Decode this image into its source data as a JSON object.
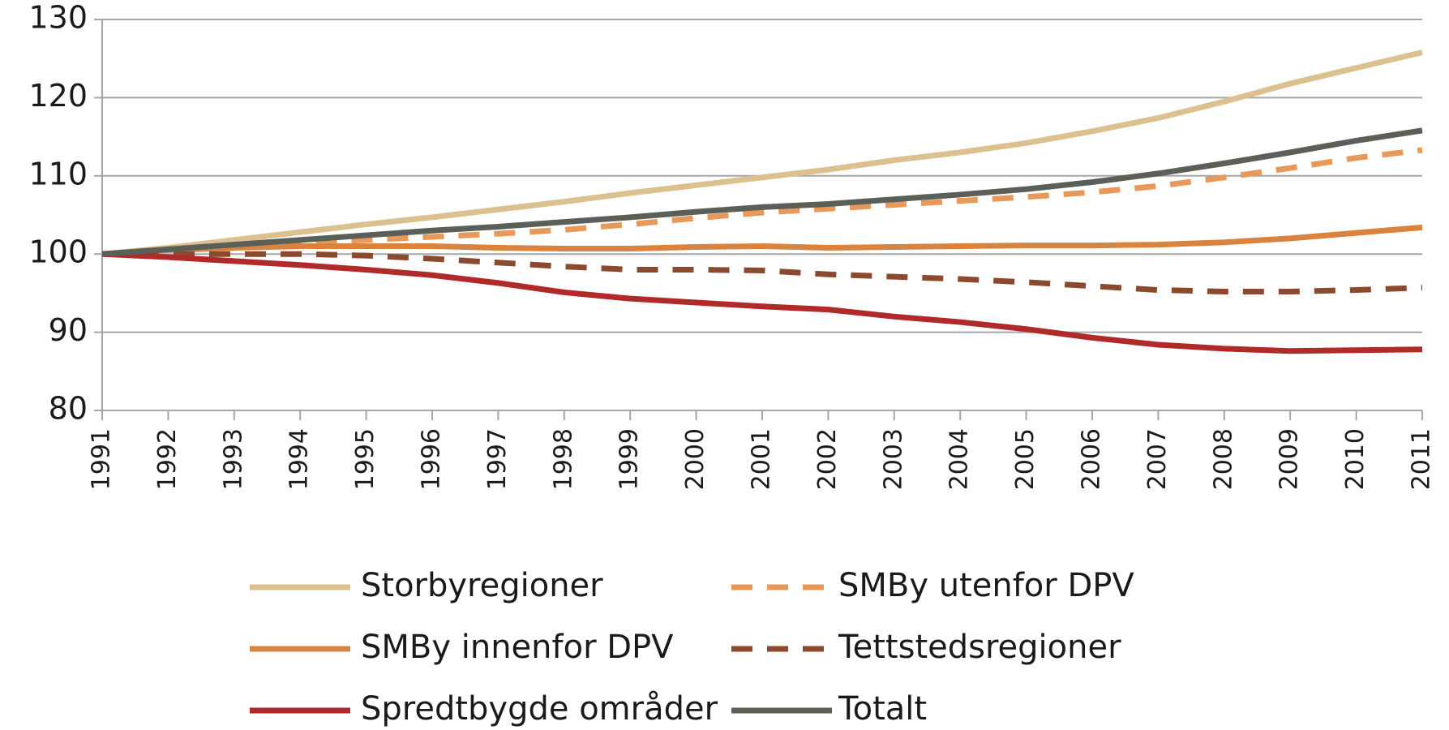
{
  "chart_data": {
    "type": "line",
    "x": [
      1991,
      1992,
      1993,
      1994,
      1995,
      1996,
      1997,
      1998,
      1999,
      2000,
      2001,
      2002,
      2003,
      2004,
      2005,
      2006,
      2007,
      2008,
      2009,
      2010,
      2011
    ],
    "xlim": [
      1991,
      2011
    ],
    "ylim": [
      80,
      130
    ],
    "yticks": [
      80,
      90,
      100,
      110,
      120,
      130
    ],
    "grid": true,
    "legend": "bottom",
    "series": [
      {
        "name": "Storbyregioner",
        "color": "#dcc08f",
        "dashed": false,
        "values": [
          100,
          100.8,
          101.8,
          102.8,
          103.8,
          104.7,
          105.7,
          106.7,
          107.8,
          108.8,
          109.8,
          110.8,
          112,
          113,
          114.2,
          115.7,
          117.4,
          119.5,
          121.8,
          123.8,
          125.8
        ]
      },
      {
        "name": "SMBy utenfor DPV",
        "color": "#e8995a",
        "dashed": true,
        "values": [
          100,
          100.5,
          101,
          101.4,
          101.8,
          102.2,
          102.6,
          103.1,
          103.8,
          104.6,
          105.3,
          105.8,
          106.3,
          106.8,
          107.3,
          107.9,
          108.7,
          109.8,
          111,
          112.3,
          113.3
        ]
      },
      {
        "name": "SMBy innenfor DPV",
        "color": "#d9833f",
        "dashed": false,
        "values": [
          100,
          100.5,
          100.8,
          101,
          101,
          101,
          100.8,
          100.7,
          100.7,
          100.9,
          101,
          100.8,
          100.9,
          101,
          101.1,
          101.1,
          101.2,
          101.5,
          102,
          102.7,
          103.4
        ]
      },
      {
        "name": "Tettstedsregioner",
        "color": "#8b4a2e",
        "dashed": true,
        "values": [
          100,
          100,
          100,
          100,
          99.8,
          99.4,
          98.9,
          98.4,
          98,
          98,
          97.9,
          97.4,
          97.1,
          96.8,
          96.4,
          95.9,
          95.4,
          95.2,
          95.2,
          95.4,
          95.7
        ]
      },
      {
        "name": "Spredtbygde områder",
        "color": "#b02a2a",
        "dashed": false,
        "values": [
          100,
          99.6,
          99.1,
          98.6,
          98,
          97.3,
          96.3,
          95.1,
          94.3,
          93.8,
          93.3,
          92.9,
          92,
          91.3,
          90.4,
          89.3,
          88.4,
          87.9,
          87.6,
          87.7,
          87.8
        ]
      },
      {
        "name": "Totalt",
        "color": "#5a5f58",
        "dashed": false,
        "values": [
          100,
          100.6,
          101.2,
          101.8,
          102.4,
          103,
          103.5,
          104.1,
          104.7,
          105.4,
          106,
          106.4,
          107,
          107.6,
          108.3,
          109.2,
          110.3,
          111.6,
          113,
          114.5,
          115.8
        ]
      }
    ]
  }
}
